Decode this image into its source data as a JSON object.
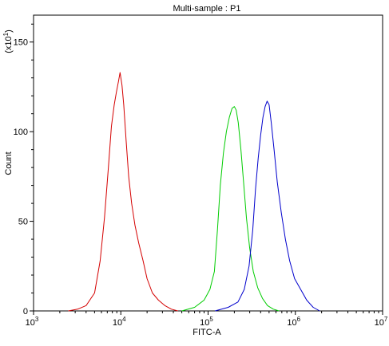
{
  "chart_data": {
    "type": "line",
    "title": "Multi-sample : P1",
    "xlabel": "FITC-A",
    "ylabel": "Count",
    "y_multiplier": {
      "prefix": "(x10",
      "exponent": "1",
      "suffix": ")"
    },
    "x_scale": "log",
    "xlim": [
      1000,
      10000000
    ],
    "ylim": [
      0,
      165
    ],
    "x_ticks": [
      {
        "value": 1000,
        "base": "10",
        "exp": "3"
      },
      {
        "value": 10000,
        "base": "10",
        "exp": "4"
      },
      {
        "value": 100000,
        "base": "10",
        "exp": "5"
      },
      {
        "value": 1000000,
        "base": "10",
        "exp": "6"
      },
      {
        "value": 10000000,
        "base": "10",
        "exp": "7"
      }
    ],
    "y_ticks": [
      {
        "value": 0,
        "label": "0"
      },
      {
        "value": 50,
        "label": "50"
      },
      {
        "value": 100,
        "label": "100"
      },
      {
        "value": 150,
        "label": "150"
      }
    ],
    "grid": false,
    "legend": "none",
    "series": [
      {
        "color": "#d40000",
        "x": [
          2500,
          3200,
          4000,
          5000,
          5800,
          6500,
          7200,
          7800,
          8400,
          8900,
          9400,
          9800,
          10300,
          10800,
          11500,
          12300,
          13300,
          14500,
          16000,
          18000,
          20000,
          23000,
          27000,
          32000,
          38000,
          45000
        ],
        "y": [
          0,
          1,
          3,
          10,
          28,
          52,
          80,
          103,
          115,
          122,
          128,
          133,
          126,
          115,
          95,
          75,
          60,
          48,
          38,
          28,
          18,
          10,
          6,
          3,
          1,
          0
        ]
      },
      {
        "color": "#00cc00",
        "x": [
          50000,
          70000,
          90000,
          105000,
          118000,
          128000,
          138000,
          150000,
          162000,
          175000,
          188000,
          200000,
          210000,
          222000,
          238000,
          255000,
          275000,
          300000,
          330000,
          370000,
          420000,
          480000,
          560000,
          650000
        ],
        "y": [
          0,
          2,
          6,
          12,
          22,
          45,
          70,
          88,
          100,
          108,
          113,
          114,
          112,
          105,
          90,
          72,
          52,
          35,
          22,
          13,
          7,
          3,
          1,
          0
        ]
      },
      {
        "color": "#0000cc",
        "x": [
          120000,
          170000,
          220000,
          260000,
          295000,
          325000,
          350000,
          375000,
          400000,
          425000,
          450000,
          475000,
          500000,
          530000,
          570000,
          620000,
          690000,
          770000,
          860000,
          980000,
          1150000,
          1350000,
          1600000,
          1900000
        ],
        "y": [
          0,
          2,
          5,
          12,
          25,
          45,
          68,
          85,
          98,
          108,
          114,
          117,
          115,
          105,
          90,
          72,
          55,
          40,
          28,
          18,
          12,
          6,
          2,
          0
        ]
      }
    ]
  }
}
